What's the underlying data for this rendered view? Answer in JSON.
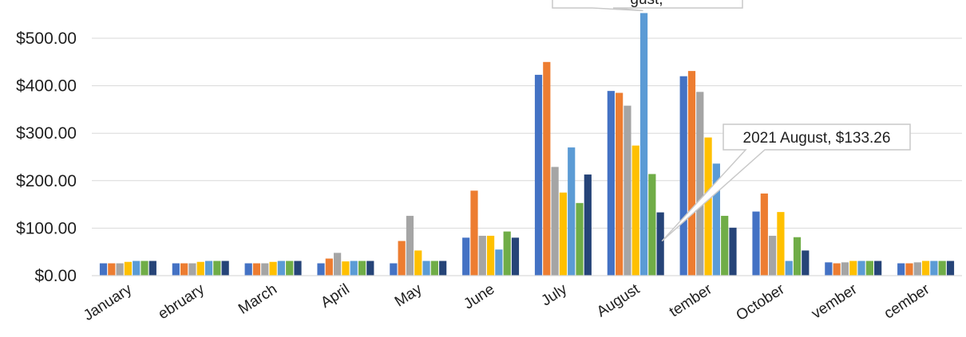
{
  "chart_data": {
    "type": "bar",
    "title": "",
    "xlabel": "",
    "ylabel": "",
    "ylim": [
      0,
      550
    ],
    "grid": true,
    "y_ticks": [
      "$0.00",
      "$100.00",
      "$200.00",
      "$300.00",
      "$400.00",
      "$500.00"
    ],
    "categories": [
      "January",
      "February",
      "March",
      "April",
      "May",
      "June",
      "July",
      "August",
      "September",
      "October",
      "November",
      "December"
    ],
    "category_labels_visible": [
      "January",
      "ebruary",
      "March",
      "April",
      "May",
      "June",
      "July",
      "August",
      "tember",
      "October",
      "vember",
      "cember"
    ],
    "series": [
      {
        "color": "#4472c4",
        "values": [
          26,
          26,
          26,
          26,
          26,
          80,
          423,
          389,
          420,
          135,
          28,
          26
        ]
      },
      {
        "color": "#ed7d31",
        "values": [
          26,
          26,
          26,
          36,
          73,
          179,
          450,
          385,
          431,
          173,
          26,
          26
        ]
      },
      {
        "color": "#a5a5a5",
        "values": [
          26,
          26,
          26,
          48,
          126,
          84,
          229,
          358,
          387,
          84,
          28,
          28
        ]
      },
      {
        "color": "#ffc000",
        "values": [
          29,
          29,
          29,
          30,
          53,
          84,
          175,
          274,
          291,
          134,
          31,
          31
        ]
      },
      {
        "color": "#5b9bd5",
        "values": [
          31,
          31,
          31,
          31,
          31,
          55,
          270,
          553,
          236,
          31,
          31,
          31
        ]
      },
      {
        "color": "#70ad47",
        "values": [
          31,
          31,
          31,
          31,
          31,
          93,
          153,
          214,
          126,
          81,
          31,
          31
        ]
      },
      {
        "color": "#264478",
        "values": [
          31,
          31,
          31,
          31,
          31,
          80,
          213,
          133.26,
          101,
          53,
          31,
          31
        ]
      }
    ],
    "annotations": [
      {
        "text": "2021 August, $133.26",
        "category": "August",
        "series_index": 6
      },
      {
        "text": "gust, ",
        "category": "August",
        "series_index": 4
      }
    ]
  }
}
